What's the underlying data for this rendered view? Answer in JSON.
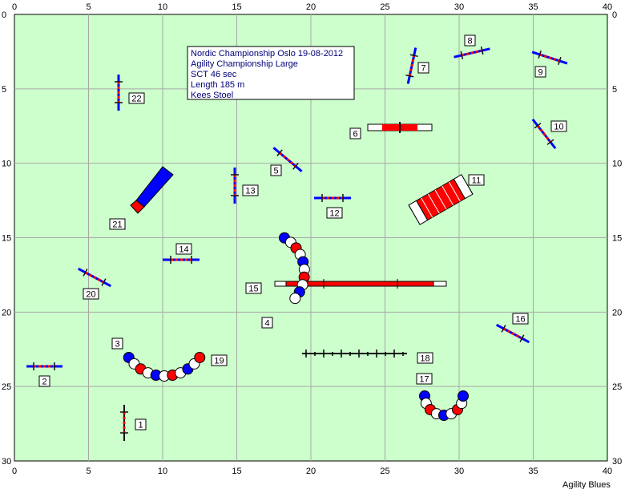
{
  "info_lines": [
    "Nordic Championship Oslo 19-08-2012",
    "Agility Championship Large",
    "SCT 46 sec",
    "Length 185 m",
    "Kees Stoel"
  ],
  "brand": "Agility Blues",
  "grid": {
    "x_ticks": [
      "0",
      "5",
      "10",
      "15",
      "20",
      "25",
      "30",
      "35",
      "40"
    ],
    "y_ticks": [
      "0",
      "5",
      "10",
      "15",
      "20",
      "25",
      "30"
    ]
  },
  "colors": {
    "field": "#ccffcc",
    "grid": "#a8a8a8",
    "bar_red": "#ff0000",
    "bar_blue": "#0000ff",
    "pole": "#111111"
  },
  "obstacles": [
    {
      "num": "1",
      "type": "jump"
    },
    {
      "num": "2",
      "type": "jump"
    },
    {
      "num": "3",
      "type": "tunnel"
    },
    {
      "num": "4",
      "type": "tunnel"
    },
    {
      "num": "5",
      "type": "jump"
    },
    {
      "num": "6",
      "type": "tire"
    },
    {
      "num": "7",
      "type": "jump"
    },
    {
      "num": "8",
      "type": "jump"
    },
    {
      "num": "9",
      "type": "jump"
    },
    {
      "num": "10",
      "type": "jump"
    },
    {
      "num": "11",
      "type": "a-frame"
    },
    {
      "num": "12",
      "type": "jump"
    },
    {
      "num": "13",
      "type": "jump"
    },
    {
      "num": "14",
      "type": "jump"
    },
    {
      "num": "15",
      "type": "dog-walk"
    },
    {
      "num": "16",
      "type": "jump"
    },
    {
      "num": "17",
      "type": "tunnel"
    },
    {
      "num": "18",
      "type": "weave-poles"
    },
    {
      "num": "19",
      "type": "tunnel"
    },
    {
      "num": "20",
      "type": "jump"
    },
    {
      "num": "21",
      "type": "chute"
    },
    {
      "num": "22",
      "type": "jump"
    }
  ]
}
